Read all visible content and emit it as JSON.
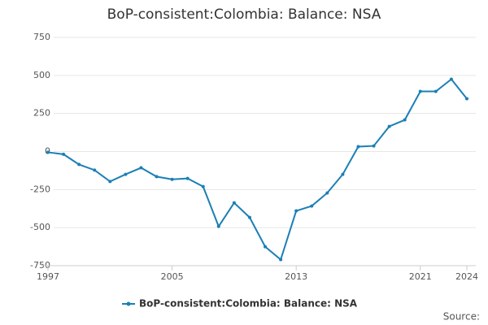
{
  "chart_data": {
    "type": "line",
    "title": "BoP-consistent:Colombia: Balance: NSA",
    "x": [
      1997,
      1998,
      1999,
      2000,
      2001,
      2002,
      2003,
      2004,
      2005,
      2006,
      2007,
      2008,
      2009,
      2010,
      2011,
      2012,
      2013,
      2014,
      2015,
      2016,
      2017,
      2018,
      2019,
      2020,
      2021,
      2022,
      2023,
      2024
    ],
    "series": [
      {
        "name": "BoP-consistent:Colombia: Balance: NSA",
        "color": "#1a7fb5",
        "values": [
          -5,
          -18,
          -85,
          -122,
          -197,
          -150,
          -107,
          -165,
          -183,
          -177,
          -230,
          -492,
          -337,
          -433,
          -625,
          -710,
          -390,
          -358,
          -272,
          -150,
          32,
          37,
          165,
          208,
          395,
          395,
          475,
          347
        ]
      }
    ],
    "xlim": [
      1997,
      2024
    ],
    "xticks": [
      1997,
      2005,
      2013,
      2021,
      2024
    ],
    "ylim": [
      -750,
      750
    ],
    "yticks": [
      -750,
      -500,
      -250,
      0,
      250,
      500,
      750
    ],
    "grid": true,
    "legend": "bottom",
    "source": "Source:"
  }
}
